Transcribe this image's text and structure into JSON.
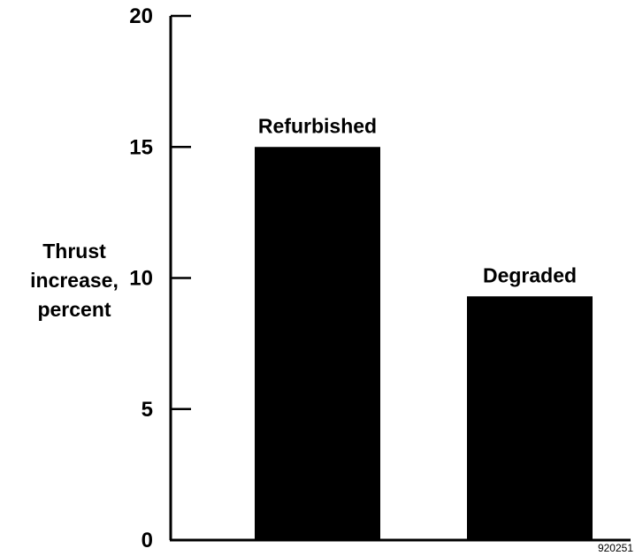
{
  "chart_data": {
    "type": "bar",
    "categories": [
      "Refurbished",
      "Degraded"
    ],
    "values": [
      15,
      9.3
    ],
    "ylabel_lines": [
      "Thrust",
      "increase,",
      "percent"
    ],
    "ylim": [
      0,
      20
    ],
    "yticks": [
      "0",
      "5",
      "10",
      "15",
      "20"
    ],
    "grid": false,
    "bar_color": "#000000",
    "figure_id": "920251"
  }
}
